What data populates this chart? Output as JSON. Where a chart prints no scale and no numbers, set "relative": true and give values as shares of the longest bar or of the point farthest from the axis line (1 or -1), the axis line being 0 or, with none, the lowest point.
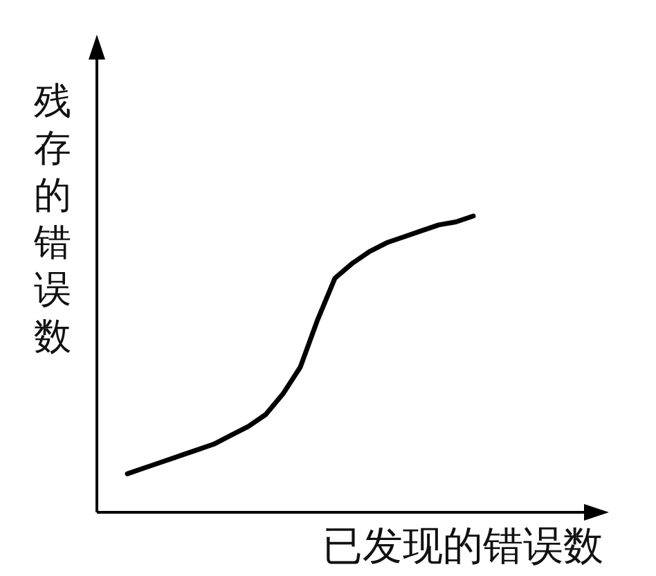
{
  "chart_data": {
    "type": "line",
    "relative": true,
    "xlabel": "已发现的错误数",
    "ylabel": "残存的错误数",
    "color": "#000000",
    "categories": [
      null,
      null,
      null,
      null,
      null,
      null,
      null,
      null,
      null,
      null,
      null,
      null,
      null,
      null,
      null,
      null,
      null,
      null,
      null,
      null,
      null
    ],
    "values": [
      0.13,
      0.15,
      0.17,
      0.19,
      0.21,
      0.23,
      0.26,
      0.29,
      0.33,
      0.4,
      0.49,
      0.65,
      0.79,
      0.84,
      0.88,
      0.91,
      0.93,
      0.95,
      0.97,
      0.98,
      1
    ]
  }
}
